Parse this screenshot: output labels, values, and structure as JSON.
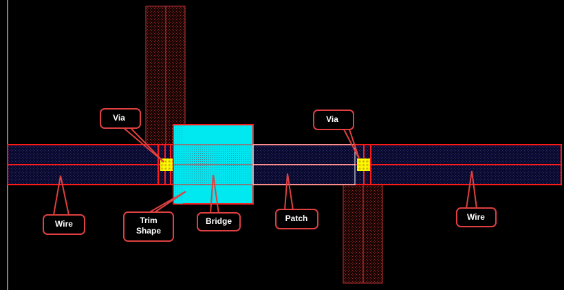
{
  "labels": {
    "via_left": "Via",
    "via_right": "Via",
    "wire_left": "Wire",
    "wire_right": "Wire",
    "trim_shape_line1": "Trim",
    "trim_shape_line2": "Shape",
    "bridge": "Bridge",
    "patch": "Patch"
  },
  "colors": {
    "background": "#000000",
    "wire_outline": "#ff1a1a",
    "wire_fill": "#0a0a3a",
    "metal2_stripe": "#c83232",
    "bridge_fill": "#00e8f0",
    "patch_outline": "#ffffff",
    "via_fill": "#ffff00",
    "callout_fill": "#000000",
    "callout_border": "#e04040",
    "callout_text": "#ffffff",
    "left_edge_line": "#ffffff"
  }
}
